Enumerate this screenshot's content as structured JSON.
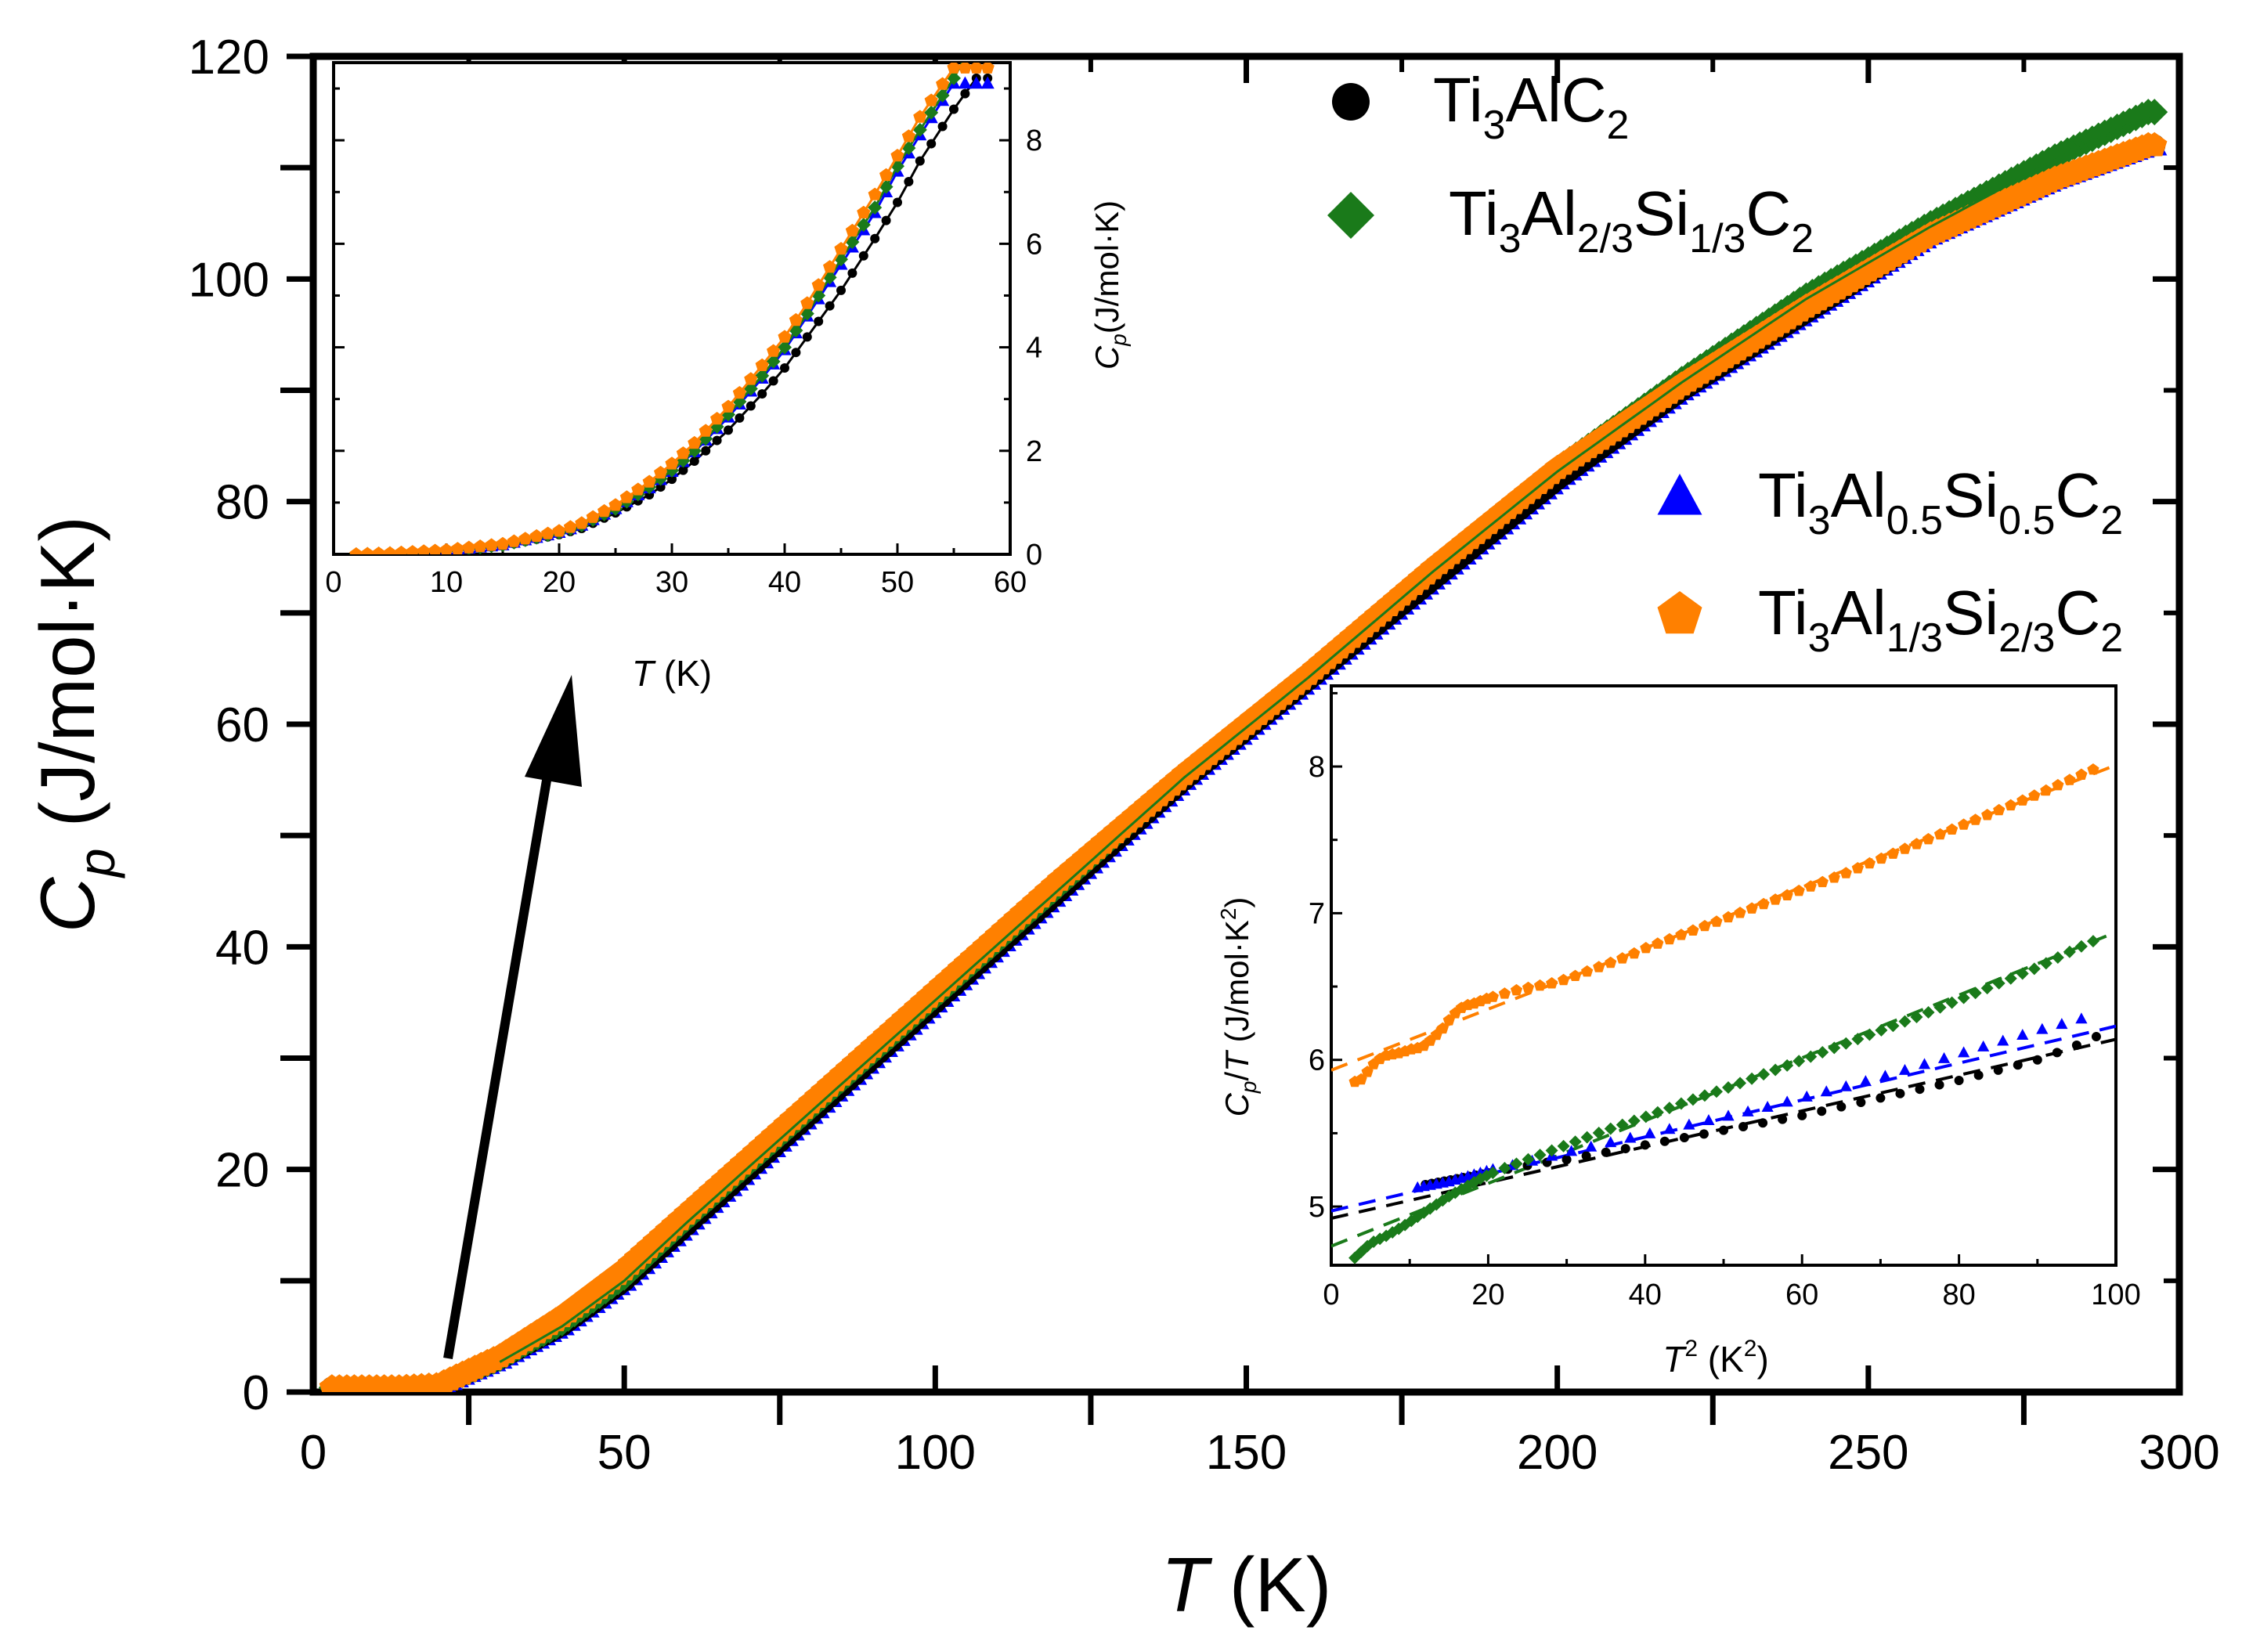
{
  "chart_data": [
    {
      "panel": "main",
      "type": "scatter",
      "xlabel": {
        "italic": "T",
        "rest": " (K)"
      },
      "ylabel": {
        "main": "C",
        "sub": "p",
        "rest": " (J/mol·K)"
      },
      "xlim": [
        0,
        300
      ],
      "ylim": [
        0,
        120
      ],
      "xticks": [
        0,
        50,
        100,
        150,
        200,
        250,
        300
      ],
      "yticks": [
        0,
        20,
        40,
        60,
        80,
        100,
        120
      ],
      "legend": [
        {
          "marker": "circle",
          "color": "#000000",
          "parts": [
            [
              "Ti",
              "n"
            ],
            [
              "3",
              "sub"
            ],
            [
              "AlC",
              "n"
            ],
            [
              "2",
              "sub"
            ]
          ]
        },
        {
          "marker": "diamond",
          "color": "#1a7a1a",
          "parts": [
            [
              "Ti",
              "n"
            ],
            [
              "3",
              "sub"
            ],
            [
              "Al",
              "n"
            ],
            [
              "2/3",
              "sub"
            ],
            [
              "Si",
              "n"
            ],
            [
              "1/3",
              "sub"
            ],
            [
              "C",
              "n"
            ],
            [
              "2",
              "sub"
            ]
          ]
        },
        {
          "marker": "triangle",
          "color": "#0000ff",
          "parts": [
            [
              "Ti",
              "n"
            ],
            [
              "3",
              "sub"
            ],
            [
              "Al",
              "n"
            ],
            [
              "0.5",
              "sub"
            ],
            [
              "Si",
              "n"
            ],
            [
              "0.5",
              "sub"
            ],
            [
              "C",
              "n"
            ],
            [
              "2",
              "sub"
            ]
          ]
        },
        {
          "marker": "pentagon",
          "color": "#ff8000",
          "parts": [
            [
              "Ti",
              "n"
            ],
            [
              "3",
              "sub"
            ],
            [
              "Al",
              "n"
            ],
            [
              "1/3",
              "sub"
            ],
            [
              "Si",
              "n"
            ],
            [
              "2/3",
              "sub"
            ],
            [
              "C",
              "n"
            ],
            [
              "2",
              "sub"
            ]
          ]
        }
      ],
      "series": [
        {
          "name": "Ti3AlC2",
          "color": "#000000",
          "x": [
            2,
            20,
            30,
            40,
            50,
            60,
            70,
            80,
            90,
            100,
            120,
            140,
            160,
            180,
            200,
            220,
            240,
            260,
            280,
            295
          ],
          "y": [
            0,
            0.6,
            3,
            6,
            10,
            15,
            20,
            25,
            30,
            35,
            45,
            55,
            64,
            73,
            82,
            90,
            97,
            104,
            109,
            112
          ]
        },
        {
          "name": "Ti3Al2/3Si1/3C2",
          "color": "#1a7a1a",
          "x": [
            2,
            20,
            30,
            40,
            50,
            60,
            70,
            80,
            90,
            100,
            120,
            140,
            160,
            180,
            200,
            220,
            240,
            260,
            280,
            295
          ],
          "y": [
            0,
            0.6,
            3,
            6.2,
            10.3,
            15.5,
            20.5,
            25.5,
            30.5,
            35.5,
            45.5,
            55.5,
            64.5,
            74,
            83,
            91,
            98.5,
            105,
            111,
            115
          ]
        },
        {
          "name": "Ti3Al0.5Si0.5C2",
          "color": "#0000ff",
          "x": [
            2,
            20,
            30,
            40,
            50,
            60,
            70,
            80,
            90,
            100,
            120,
            140,
            160,
            180,
            200,
            220,
            240,
            260,
            280,
            295
          ],
          "y": [
            0,
            0.6,
            3,
            6,
            10,
            15,
            20,
            25,
            30,
            35,
            45,
            55,
            64,
            73,
            82,
            90,
            97,
            104,
            109,
            112
          ]
        },
        {
          "name": "Ti3Al1/3Si2/3C2",
          "color": "#ff8000",
          "x": [
            2,
            20,
            30,
            40,
            50,
            60,
            70,
            80,
            90,
            100,
            120,
            140,
            160,
            180,
            200,
            220,
            240,
            260,
            280,
            295
          ],
          "y": [
            0,
            0.6,
            3.2,
            6.8,
            11,
            16,
            21,
            26,
            31,
            36,
            46,
            55.5,
            64.5,
            74,
            83,
            90.5,
            97.5,
            104,
            109,
            112
          ]
        }
      ],
      "fit": {
        "color": "#1a7a1a",
        "style": "solid"
      }
    },
    {
      "panel": "inset-low-T",
      "type": "scatter",
      "xlabel": {
        "italic": "T",
        "rest": " (K)"
      },
      "ylabel": {
        "main": "C",
        "sub": "p",
        "rest": "(J/mol·K)"
      },
      "xlim": [
        0,
        60
      ],
      "ylim": [
        0,
        9.5
      ],
      "xticks": [
        0,
        10,
        20,
        30,
        40,
        50,
        60
      ],
      "yticks": [
        0,
        2,
        4,
        6,
        8
      ],
      "series": [
        {
          "name": "Ti3AlC2",
          "color": "#000000",
          "x": [
            2,
            5,
            10,
            15,
            20,
            22,
            25,
            28,
            30,
            32,
            35,
            38,
            40,
            42,
            45,
            48,
            50,
            52,
            55,
            57
          ],
          "y": [
            0,
            0.02,
            0.06,
            0.16,
            0.38,
            0.5,
            0.8,
            1.15,
            1.45,
            1.8,
            2.4,
            3.1,
            3.6,
            4.2,
            5.1,
            6.1,
            6.8,
            7.6,
            8.6,
            9.2
          ]
        },
        {
          "name": "Ti3Al2/3Si1/3C2",
          "color": "#1a7a1a",
          "x": [
            2,
            5,
            10,
            15,
            20,
            22,
            25,
            28,
            30,
            32,
            35,
            38,
            40,
            42,
            45,
            48,
            50,
            52,
            55,
            56
          ],
          "y": [
            0,
            0.02,
            0.07,
            0.18,
            0.42,
            0.56,
            0.88,
            1.3,
            1.62,
            2.0,
            2.7,
            3.45,
            4.0,
            4.65,
            5.7,
            6.7,
            7.5,
            8.2,
            9.2,
            9.6
          ]
        },
        {
          "name": "Ti3Al0.5Si0.5C2",
          "color": "#0000ff",
          "x": [
            2,
            5,
            10,
            15,
            20,
            22,
            25,
            28,
            30,
            32,
            35,
            38,
            40,
            42,
            45,
            48,
            50,
            52,
            55
          ],
          "y": [
            0,
            0.02,
            0.07,
            0.18,
            0.42,
            0.56,
            0.88,
            1.28,
            1.6,
            1.98,
            2.65,
            3.4,
            3.95,
            4.6,
            5.6,
            6.6,
            7.4,
            8.1,
            9.1
          ]
        },
        {
          "name": "Ti3Al1/3Si2/3C2",
          "color": "#ff8000",
          "x": [
            2,
            5,
            10,
            15,
            20,
            22,
            25,
            28,
            30,
            32,
            35,
            38,
            40,
            42,
            45,
            48,
            50,
            52,
            55
          ],
          "y": [
            0,
            0.02,
            0.08,
            0.2,
            0.45,
            0.6,
            0.95,
            1.4,
            1.75,
            2.15,
            2.85,
            3.65,
            4.2,
            4.85,
            5.9,
            6.95,
            7.7,
            8.45,
            9.4
          ]
        }
      ]
    },
    {
      "panel": "inset-CpT",
      "type": "scatter",
      "xlabel": {
        "italic": "T",
        "sup": "2",
        "rest": " (K",
        "rest_sup": "2",
        "rest_end": ")"
      },
      "ylabel": {
        "main": "C",
        "sub": "p",
        "rest": "/",
        "italic": "T",
        "rest2": " (J/mol·K",
        "sup": "2",
        "rest3": ")"
      },
      "xlim": [
        0,
        100
      ],
      "ylim": [
        4.6,
        8.55
      ],
      "xticks": [
        0,
        20,
        40,
        60,
        80,
        100
      ],
      "yticks": [
        5,
        6,
        7,
        8
      ],
      "ytick_labels": [
        "5",
        "6",
        "7",
        "8"
      ],
      "series": [
        {
          "name": "Ti3AlC2",
          "color": "#000000",
          "x": [
            12,
            15,
            18,
            20,
            23,
            26,
            30,
            35,
            40,
            45,
            50,
            55,
            60,
            65,
            70,
            75,
            80,
            85,
            90,
            95,
            98
          ],
          "y": [
            5.15,
            5.18,
            5.21,
            5.23,
            5.26,
            5.29,
            5.32,
            5.37,
            5.42,
            5.47,
            5.52,
            5.57,
            5.62,
            5.68,
            5.74,
            5.8,
            5.86,
            5.93,
            6.0,
            6.1,
            6.17
          ]
        },
        {
          "name": "Ti3Al2/3Si1/3C2",
          "color": "#1a7a1a",
          "x": [
            3,
            4,
            5,
            7,
            9,
            11,
            13,
            15,
            17,
            19,
            21,
            24,
            27,
            30,
            35,
            40,
            45,
            50,
            55,
            60,
            65,
            70,
            75,
            80,
            85,
            90,
            95,
            98
          ],
          "y": [
            4.65,
            4.7,
            4.75,
            4.8,
            4.86,
            4.93,
            5.0,
            5.07,
            5.13,
            5.19,
            5.24,
            5.3,
            5.36,
            5.42,
            5.52,
            5.61,
            5.71,
            5.8,
            5.9,
            6.0,
            6.1,
            6.2,
            6.3,
            6.41,
            6.52,
            6.63,
            6.76,
            6.83
          ]
        },
        {
          "name": "Ti3Al0.5Si0.5C2",
          "color": "#0000ff",
          "x": [
            11,
            13,
            15,
            17,
            19,
            21,
            24,
            27,
            30,
            35,
            40,
            45,
            50,
            55,
            60,
            65,
            70,
            75,
            80,
            85,
            90,
            95,
            98
          ],
          "y": [
            5.13,
            5.15,
            5.17,
            5.2,
            5.23,
            5.26,
            5.29,
            5.33,
            5.37,
            5.43,
            5.49,
            5.55,
            5.61,
            5.67,
            5.74,
            5.81,
            5.88,
            5.96,
            6.04,
            6.12,
            6.2,
            6.27,
            6.32
          ]
        },
        {
          "name": "Ti3Al1/3Si2/3C2",
          "color": "#ff8000",
          "x": [
            3,
            4,
            5,
            6,
            7,
            8,
            9,
            10,
            11,
            12,
            13,
            14,
            15,
            16,
            17,
            18,
            19,
            20,
            22,
            24,
            26,
            28,
            30,
            32,
            34,
            36,
            38,
            40,
            45,
            50,
            55,
            60,
            65,
            70,
            75,
            80,
            85,
            90,
            95,
            98
          ],
          "y": [
            5.85,
            5.87,
            5.95,
            6.0,
            6.03,
            6.04,
            6.05,
            6.07,
            6.08,
            6.1,
            6.15,
            6.2,
            6.27,
            6.33,
            6.37,
            6.38,
            6.4,
            6.42,
            6.45,
            6.48,
            6.5,
            6.52,
            6.55,
            6.59,
            6.63,
            6.67,
            6.71,
            6.76,
            6.86,
            6.96,
            7.06,
            7.16,
            7.26,
            7.37,
            7.48,
            7.59,
            7.7,
            7.81,
            7.93,
            8.0
          ]
        }
      ],
      "fits": [
        {
          "color": "#000000",
          "y0": 4.92,
          "slope": 0.0122
        },
        {
          "color": "#1a7a1a",
          "y0": 4.73,
          "slope": 0.0214
        },
        {
          "color": "#0000ff",
          "y0": 4.97,
          "slope": 0.0126
        },
        {
          "color": "#ff8000",
          "y0": 5.93,
          "slope": 0.0208
        }
      ]
    }
  ],
  "legend": {
    "items": [
      {
        "label": "Ti3AlC2"
      },
      {
        "label": "Ti3Al2/3Si1/3C2"
      },
      {
        "label": "Ti3Al0.5Si0.5C2"
      },
      {
        "label": "Ti3Al1/3Si2/3C2"
      }
    ]
  }
}
